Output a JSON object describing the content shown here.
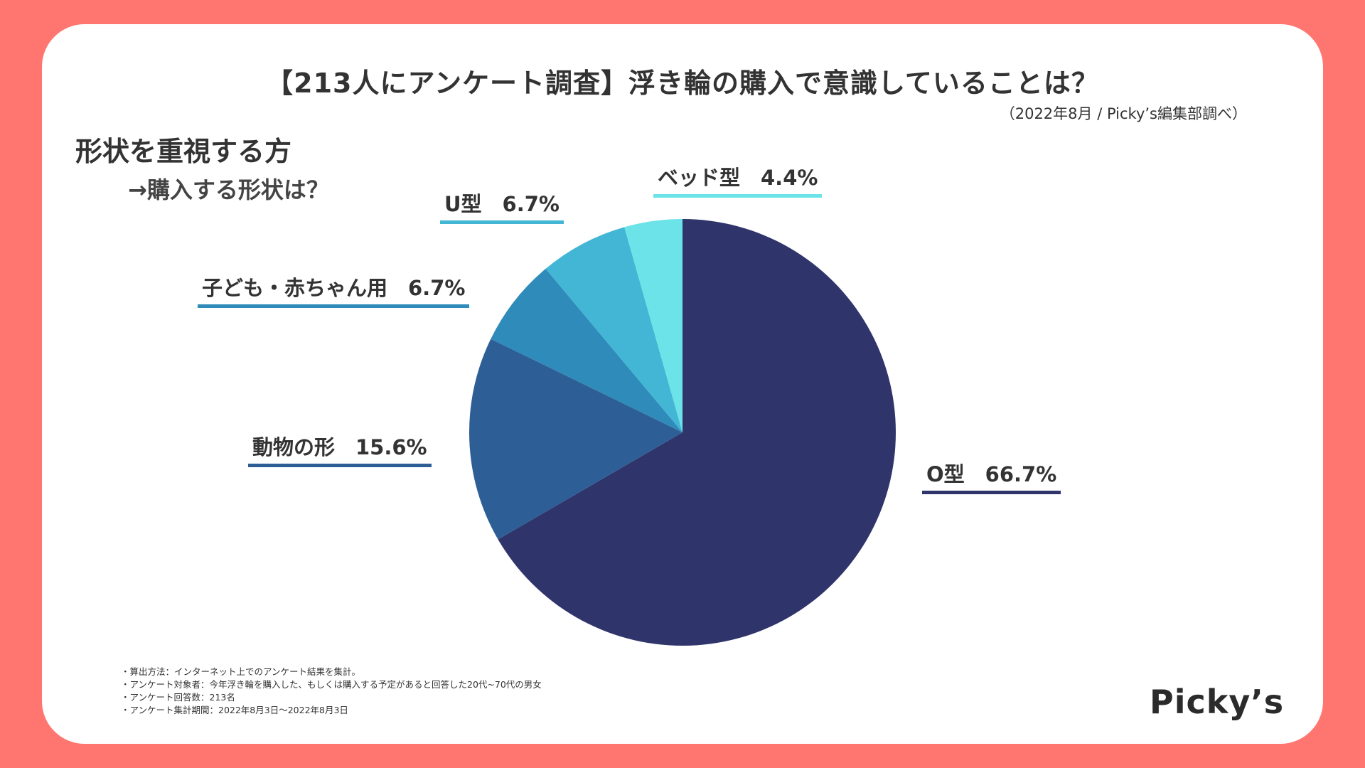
{
  "header": {
    "title": "【213人にアンケート調査】浮き輪の購入で意識していることは？",
    "source": "（2022年8月 / Picky’s編集部調べ）"
  },
  "section": {
    "heading": "形状を重視する方",
    "subheading": "→購入する形状は？"
  },
  "chart_data": {
    "type": "pie",
    "title": "",
    "slices": [
      {
        "label": "O型",
        "value": 66.7,
        "display": "O型　66.7%",
        "color": "#2F346B"
      },
      {
        "label": "動物の形",
        "value": 15.6,
        "display": "動物の形　15.6%",
        "color": "#2D5F96"
      },
      {
        "label": "子ども・赤ちゃん用",
        "value": 6.7,
        "display": "子ども・赤ちゃん用　6.7%",
        "color": "#2E8BBA"
      },
      {
        "label": "U型",
        "value": 6.7,
        "display": "U型　6.7%",
        "color": "#43B6D5"
      },
      {
        "label": "ベッド型",
        "value": 4.4,
        "display": "ベッド型　4.4%",
        "color": "#6BE3E8"
      }
    ],
    "start": "12 o'clock",
    "direction": "clockwise"
  },
  "notes": [
    "・算出方法：インターネット上でのアンケート結果を集計。",
    "・アンケート対象者：今年浮き輪を購入した、もしくは購入する予定があると回答した20代~70代の男女",
    "・アンケート回答数：213名",
    "・アンケート集計期間：2022年8月3日〜2022年8月3日"
  ],
  "logo": "Picky’s",
  "colors": {
    "background": "#FF7670",
    "card": "#FFFFFF",
    "text": "#333333"
  }
}
